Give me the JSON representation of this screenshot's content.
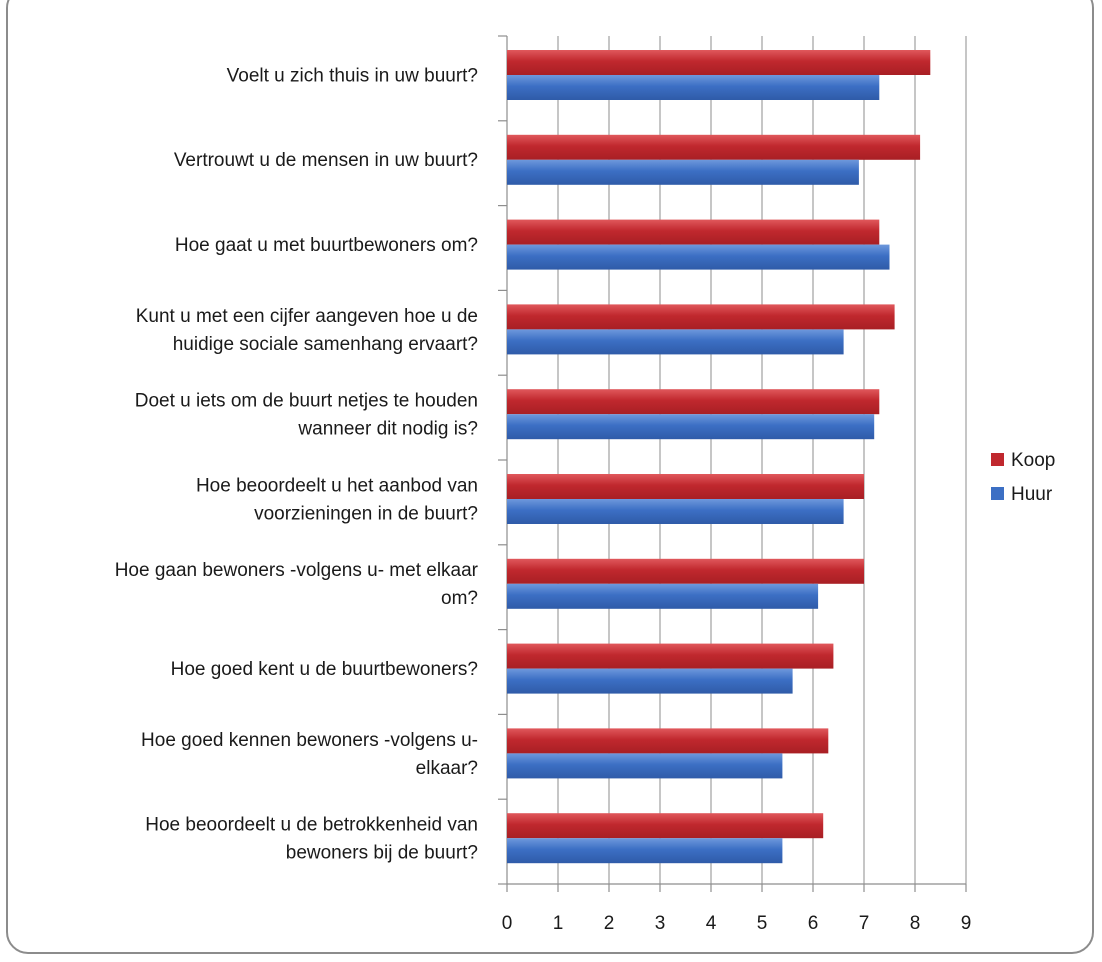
{
  "chart_data": {
    "type": "bar",
    "orientation": "horizontal",
    "categories": [
      [
        "Voelt u zich thuis in uw buurt?"
      ],
      [
        "Vertrouwt u de mensen in uw buurt?"
      ],
      [
        "Hoe gaat u met buurtbewoners om?"
      ],
      [
        "Kunt u met een cijfer aangeven hoe u de",
        "huidige sociale samenhang ervaart?"
      ],
      [
        "Doet u iets om de buurt netjes te houden",
        "wanneer dit nodig is?"
      ],
      [
        "Hoe beoordeelt u het aanbod van",
        "voorzieningen in de buurt?"
      ],
      [
        "Hoe gaan bewoners -volgens u- met elkaar",
        "om?"
      ],
      [
        "Hoe goed kent u de buurtbewoners?"
      ],
      [
        "Hoe goed kennen bewoners -volgens u-",
        "elkaar?"
      ],
      [
        "Hoe beoordeelt u de betrokkenheid van",
        "bewoners bij de buurt?"
      ]
    ],
    "series": [
      {
        "name": "Koop",
        "color": "#c0282e",
        "values": [
          8.3,
          8.1,
          7.3,
          7.6,
          7.3,
          7.0,
          7.0,
          6.4,
          6.3,
          6.2
        ]
      },
      {
        "name": "Huur",
        "color": "#3c6fc4",
        "values": [
          7.3,
          6.9,
          7.5,
          6.6,
          7.2,
          6.6,
          6.1,
          5.6,
          5.4,
          5.4
        ]
      }
    ],
    "xlim": [
      0,
      9
    ],
    "xticks": [
      "0",
      "1",
      "2",
      "3",
      "4",
      "5",
      "6",
      "7",
      "8",
      "9"
    ],
    "grid": true,
    "legend_position": "right",
    "title": "",
    "xlabel": "",
    "ylabel": ""
  }
}
